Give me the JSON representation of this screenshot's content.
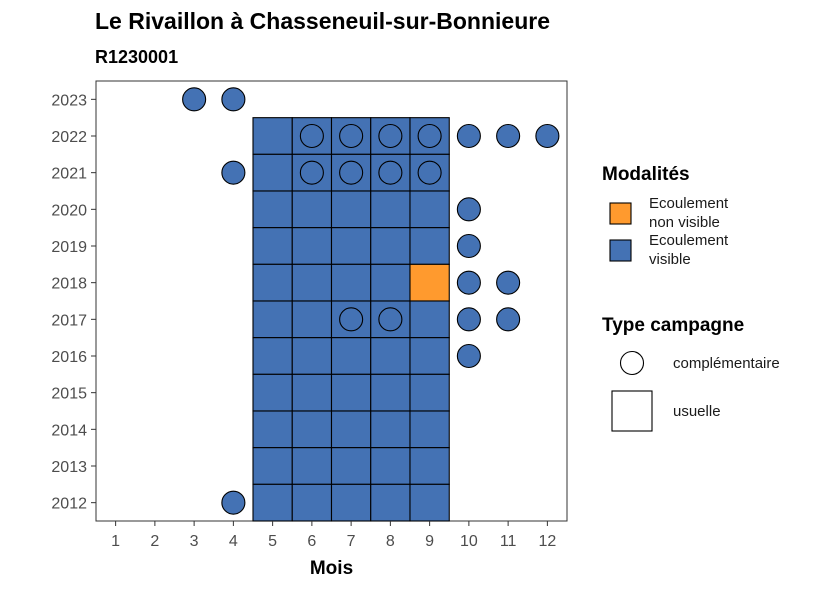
{
  "chart_data": {
    "type": "heatmap",
    "title": "Le Rivaillon à Chasseneuil-sur-Bonnieure",
    "subtitle": "R1230001",
    "xlabel": "Mois",
    "ylabel": "",
    "x_ticks": [
      1,
      2,
      3,
      4,
      5,
      6,
      7,
      8,
      9,
      10,
      11,
      12
    ],
    "y_ticks": [
      2012,
      2013,
      2014,
      2015,
      2016,
      2017,
      2018,
      2019,
      2020,
      2021,
      2022,
      2023
    ],
    "xlim": [
      0.5,
      12.5
    ],
    "ylim": [
      2011.5,
      2023.5
    ],
    "grid": false,
    "legend_position": "right",
    "colors": {
      "Ecoulement non visible": "#FF9A2E",
      "Ecoulement visible": "#4472B4"
    },
    "legend_fill": {
      "title": "Modalités",
      "entries": [
        {
          "label_lines": [
            "Ecoulement",
            "non visible"
          ],
          "key": "Ecoulement non visible"
        },
        {
          "label_lines": [
            "Ecoulement",
            "visible"
          ],
          "key": "Ecoulement visible"
        }
      ]
    },
    "legend_shape": {
      "title": "Type campagne",
      "entries": [
        {
          "label": "complémentaire",
          "shape": "circle"
        },
        {
          "label": "usuelle",
          "shape": "square"
        }
      ]
    },
    "points": [
      {
        "month": 3,
        "year": 2023,
        "modalite": "Ecoulement visible",
        "campagne": "complémentaire"
      },
      {
        "month": 4,
        "year": 2023,
        "modalite": "Ecoulement visible",
        "campagne": "complémentaire"
      },
      {
        "month": 5,
        "year": 2022,
        "modalite": "Ecoulement visible",
        "campagne": "usuelle"
      },
      {
        "month": 6,
        "year": 2022,
        "modalite": "Ecoulement visible",
        "campagne": "usuelle"
      },
      {
        "month": 7,
        "year": 2022,
        "modalite": "Ecoulement visible",
        "campagne": "usuelle"
      },
      {
        "month": 8,
        "year": 2022,
        "modalite": "Ecoulement visible",
        "campagne": "usuelle"
      },
      {
        "month": 9,
        "year": 2022,
        "modalite": "Ecoulement visible",
        "campagne": "usuelle"
      },
      {
        "month": 6,
        "year": 2022,
        "modalite": "Ecoulement visible",
        "campagne": "complémentaire"
      },
      {
        "month": 7,
        "year": 2022,
        "modalite": "Ecoulement visible",
        "campagne": "complémentaire"
      },
      {
        "month": 8,
        "year": 2022,
        "modalite": "Ecoulement visible",
        "campagne": "complémentaire"
      },
      {
        "month": 9,
        "year": 2022,
        "modalite": "Ecoulement visible",
        "campagne": "complémentaire"
      },
      {
        "month": 10,
        "year": 2022,
        "modalite": "Ecoulement visible",
        "campagne": "complémentaire"
      },
      {
        "month": 11,
        "year": 2022,
        "modalite": "Ecoulement visible",
        "campagne": "complémentaire"
      },
      {
        "month": 12,
        "year": 2022,
        "modalite": "Ecoulement visible",
        "campagne": "complémentaire"
      },
      {
        "month": 5,
        "year": 2021,
        "modalite": "Ecoulement visible",
        "campagne": "usuelle"
      },
      {
        "month": 6,
        "year": 2021,
        "modalite": "Ecoulement visible",
        "campagne": "usuelle"
      },
      {
        "month": 7,
        "year": 2021,
        "modalite": "Ecoulement visible",
        "campagne": "usuelle"
      },
      {
        "month": 8,
        "year": 2021,
        "modalite": "Ecoulement visible",
        "campagne": "usuelle"
      },
      {
        "month": 9,
        "year": 2021,
        "modalite": "Ecoulement visible",
        "campagne": "usuelle"
      },
      {
        "month": 4,
        "year": 2021,
        "modalite": "Ecoulement visible",
        "campagne": "complémentaire"
      },
      {
        "month": 6,
        "year": 2021,
        "modalite": "Ecoulement visible",
        "campagne": "complémentaire"
      },
      {
        "month": 7,
        "year": 2021,
        "modalite": "Ecoulement visible",
        "campagne": "complémentaire"
      },
      {
        "month": 8,
        "year": 2021,
        "modalite": "Ecoulement visible",
        "campagne": "complémentaire"
      },
      {
        "month": 9,
        "year": 2021,
        "modalite": "Ecoulement visible",
        "campagne": "complémentaire"
      },
      {
        "month": 5,
        "year": 2020,
        "modalite": "Ecoulement visible",
        "campagne": "usuelle"
      },
      {
        "month": 6,
        "year": 2020,
        "modalite": "Ecoulement visible",
        "campagne": "usuelle"
      },
      {
        "month": 7,
        "year": 2020,
        "modalite": "Ecoulement visible",
        "campagne": "usuelle"
      },
      {
        "month": 8,
        "year": 2020,
        "modalite": "Ecoulement visible",
        "campagne": "usuelle"
      },
      {
        "month": 9,
        "year": 2020,
        "modalite": "Ecoulement visible",
        "campagne": "usuelle"
      },
      {
        "month": 10,
        "year": 2020,
        "modalite": "Ecoulement visible",
        "campagne": "complémentaire"
      },
      {
        "month": 5,
        "year": 2019,
        "modalite": "Ecoulement visible",
        "campagne": "usuelle"
      },
      {
        "month": 6,
        "year": 2019,
        "modalite": "Ecoulement visible",
        "campagne": "usuelle"
      },
      {
        "month": 7,
        "year": 2019,
        "modalite": "Ecoulement visible",
        "campagne": "usuelle"
      },
      {
        "month": 8,
        "year": 2019,
        "modalite": "Ecoulement visible",
        "campagne": "usuelle"
      },
      {
        "month": 9,
        "year": 2019,
        "modalite": "Ecoulement visible",
        "campagne": "usuelle"
      },
      {
        "month": 10,
        "year": 2019,
        "modalite": "Ecoulement visible",
        "campagne": "complémentaire"
      },
      {
        "month": 5,
        "year": 2018,
        "modalite": "Ecoulement visible",
        "campagne": "usuelle"
      },
      {
        "month": 6,
        "year": 2018,
        "modalite": "Ecoulement visible",
        "campagne": "usuelle"
      },
      {
        "month": 7,
        "year": 2018,
        "modalite": "Ecoulement visible",
        "campagne": "usuelle"
      },
      {
        "month": 8,
        "year": 2018,
        "modalite": "Ecoulement visible",
        "campagne": "usuelle"
      },
      {
        "month": 9,
        "year": 2018,
        "modalite": "Ecoulement non visible",
        "campagne": "usuelle"
      },
      {
        "month": 10,
        "year": 2018,
        "modalite": "Ecoulement visible",
        "campagne": "complémentaire"
      },
      {
        "month": 11,
        "year": 2018,
        "modalite": "Ecoulement visible",
        "campagne": "complémentaire"
      },
      {
        "month": 5,
        "year": 2017,
        "modalite": "Ecoulement visible",
        "campagne": "usuelle"
      },
      {
        "month": 6,
        "year": 2017,
        "modalite": "Ecoulement visible",
        "campagne": "usuelle"
      },
      {
        "month": 7,
        "year": 2017,
        "modalite": "Ecoulement visible",
        "campagne": "usuelle"
      },
      {
        "month": 8,
        "year": 2017,
        "modalite": "Ecoulement visible",
        "campagne": "usuelle"
      },
      {
        "month": 9,
        "year": 2017,
        "modalite": "Ecoulement visible",
        "campagne": "usuelle"
      },
      {
        "month": 7,
        "year": 2017,
        "modalite": "Ecoulement visible",
        "campagne": "complémentaire"
      },
      {
        "month": 8,
        "year": 2017,
        "modalite": "Ecoulement visible",
        "campagne": "complémentaire"
      },
      {
        "month": 10,
        "year": 2017,
        "modalite": "Ecoulement visible",
        "campagne": "complémentaire"
      },
      {
        "month": 11,
        "year": 2017,
        "modalite": "Ecoulement visible",
        "campagne": "complémentaire"
      },
      {
        "month": 5,
        "year": 2016,
        "modalite": "Ecoulement visible",
        "campagne": "usuelle"
      },
      {
        "month": 6,
        "year": 2016,
        "modalite": "Ecoulement visible",
        "campagne": "usuelle"
      },
      {
        "month": 7,
        "year": 2016,
        "modalite": "Ecoulement visible",
        "campagne": "usuelle"
      },
      {
        "month": 8,
        "year": 2016,
        "modalite": "Ecoulement visible",
        "campagne": "usuelle"
      },
      {
        "month": 9,
        "year": 2016,
        "modalite": "Ecoulement visible",
        "campagne": "usuelle"
      },
      {
        "month": 10,
        "year": 2016,
        "modalite": "Ecoulement visible",
        "campagne": "complémentaire"
      },
      {
        "month": 5,
        "year": 2015,
        "modalite": "Ecoulement visible",
        "campagne": "usuelle"
      },
      {
        "month": 6,
        "year": 2015,
        "modalite": "Ecoulement visible",
        "campagne": "usuelle"
      },
      {
        "month": 7,
        "year": 2015,
        "modalite": "Ecoulement visible",
        "campagne": "usuelle"
      },
      {
        "month": 8,
        "year": 2015,
        "modalite": "Ecoulement visible",
        "campagne": "usuelle"
      },
      {
        "month": 9,
        "year": 2015,
        "modalite": "Ecoulement visible",
        "campagne": "usuelle"
      },
      {
        "month": 5,
        "year": 2014,
        "modalite": "Ecoulement visible",
        "campagne": "usuelle"
      },
      {
        "month": 6,
        "year": 2014,
        "modalite": "Ecoulement visible",
        "campagne": "usuelle"
      },
      {
        "month": 7,
        "year": 2014,
        "modalite": "Ecoulement visible",
        "campagne": "usuelle"
      },
      {
        "month": 8,
        "year": 2014,
        "modalite": "Ecoulement visible",
        "campagne": "usuelle"
      },
      {
        "month": 9,
        "year": 2014,
        "modalite": "Ecoulement visible",
        "campagne": "usuelle"
      },
      {
        "month": 5,
        "year": 2013,
        "modalite": "Ecoulement visible",
        "campagne": "usuelle"
      },
      {
        "month": 6,
        "year": 2013,
        "modalite": "Ecoulement visible",
        "campagne": "usuelle"
      },
      {
        "month": 7,
        "year": 2013,
        "modalite": "Ecoulement visible",
        "campagne": "usuelle"
      },
      {
        "month": 8,
        "year": 2013,
        "modalite": "Ecoulement visible",
        "campagne": "usuelle"
      },
      {
        "month": 9,
        "year": 2013,
        "modalite": "Ecoulement visible",
        "campagne": "usuelle"
      },
      {
        "month": 5,
        "year": 2012,
        "modalite": "Ecoulement visible",
        "campagne": "usuelle"
      },
      {
        "month": 6,
        "year": 2012,
        "modalite": "Ecoulement visible",
        "campagne": "usuelle"
      },
      {
        "month": 7,
        "year": 2012,
        "modalite": "Ecoulement visible",
        "campagne": "usuelle"
      },
      {
        "month": 8,
        "year": 2012,
        "modalite": "Ecoulement visible",
        "campagne": "usuelle"
      },
      {
        "month": 9,
        "year": 2012,
        "modalite": "Ecoulement visible",
        "campagne": "usuelle"
      },
      {
        "month": 4,
        "year": 2012,
        "modalite": "Ecoulement visible",
        "campagne": "complémentaire"
      }
    ]
  }
}
